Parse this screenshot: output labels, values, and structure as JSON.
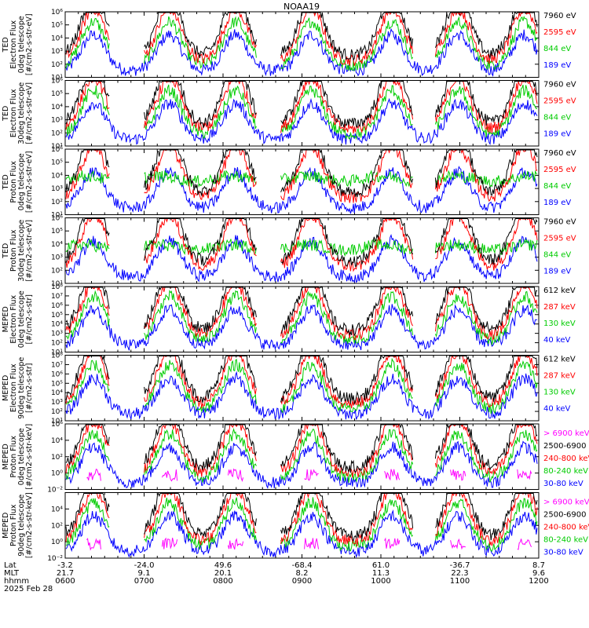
{
  "chart_data": {
    "type": "line",
    "title": "NOAA19",
    "x_start_hhmm": "0600",
    "x_end_hhmm": "1200",
    "panels": [
      {
        "ylabel": [
          "TED",
          "Electron Flux",
          "0deg telescope",
          "[#/cm2-s-str-eV]"
        ],
        "ylim": [
          10,
          1000000
        ],
        "log": true,
        "yticks": [
          "10⁶",
          "10⁵",
          "10⁴",
          "10³",
          "10²",
          "10¹"
        ],
        "ytick_exps": [
          6,
          5,
          4,
          3,
          2,
          1
        ],
        "series": [
          {
            "name": "7960 eV",
            "color": "#000000"
          },
          {
            "name": "2595 eV",
            "color": "#ff0000"
          },
          {
            "name": "844 eV",
            "color": "#00cc00"
          },
          {
            "name": "189 eV",
            "color": "#0000ff"
          }
        ]
      },
      {
        "ylabel": [
          "TED",
          "Electron Flux",
          "30deg telescope",
          "[#/cm2-s-str-eV]"
        ],
        "ylim": [
          10,
          1000000
        ],
        "log": true,
        "yticks": [
          "10⁶",
          "10⁵",
          "10⁴",
          "10³",
          "10²",
          "10¹"
        ],
        "ytick_exps": [
          6,
          5,
          4,
          3,
          2,
          1
        ],
        "series": [
          {
            "name": "7960 eV",
            "color": "#000000"
          },
          {
            "name": "2595 eV",
            "color": "#ff0000"
          },
          {
            "name": "844 eV",
            "color": "#00cc00"
          },
          {
            "name": "189 eV",
            "color": "#0000ff"
          }
        ]
      },
      {
        "ylabel": [
          "TED",
          "Proton Flux",
          "0deg telescope",
          "[#/cm2-s-str-eV]"
        ],
        "ylim": [
          10,
          1000000
        ],
        "log": true,
        "yticks": [
          "10⁶",
          "10⁵",
          "10⁴",
          "10³",
          "10²",
          "10¹"
        ],
        "ytick_exps": [
          6,
          5,
          4,
          3,
          2,
          1
        ],
        "series": [
          {
            "name": "7960 eV",
            "color": "#000000"
          },
          {
            "name": "2595 eV",
            "color": "#ff0000"
          },
          {
            "name": "844 eV",
            "color": "#00cc00"
          },
          {
            "name": "189 eV",
            "color": "#0000ff"
          }
        ]
      },
      {
        "ylabel": [
          "TED",
          "Proton Flux",
          "30deg telescope",
          "[#/cm2-s-str-eV]"
        ],
        "ylim": [
          10,
          1000000
        ],
        "log": true,
        "yticks": [
          "10⁶",
          "10⁵",
          "10⁴",
          "10³",
          "10²",
          "10¹"
        ],
        "ytick_exps": [
          6,
          5,
          4,
          3,
          2,
          1
        ],
        "series": [
          {
            "name": "7960 eV",
            "color": "#000000"
          },
          {
            "name": "2595 eV",
            "color": "#ff0000"
          },
          {
            "name": "844 eV",
            "color": "#00cc00"
          },
          {
            "name": "189 eV",
            "color": "#0000ff"
          }
        ]
      },
      {
        "ylabel": [
          "MEPED",
          "Electron Flux",
          "0deg telescope",
          "[#/cm2-s-str]"
        ],
        "ylim": [
          10,
          100000000
        ],
        "log": true,
        "yticks": [
          "10⁸",
          "10⁷",
          "10⁶",
          "10⁵",
          "10⁴",
          "10³",
          "10²",
          "10¹"
        ],
        "ytick_exps": [
          8,
          7,
          6,
          5,
          4,
          3,
          2,
          1
        ],
        "series": [
          {
            "name": "612 keV",
            "color": "#000000"
          },
          {
            "name": "287 keV",
            "color": "#ff0000"
          },
          {
            "name": "130 keV",
            "color": "#00cc00"
          },
          {
            "name": "40 keV",
            "color": "#0000ff"
          }
        ]
      },
      {
        "ylabel": [
          "MEPED",
          "Electron Flux",
          "90deg telescope",
          "[#/cm2-s-str]"
        ],
        "ylim": [
          10,
          100000000
        ],
        "log": true,
        "yticks": [
          "10⁸",
          "10⁷",
          "10⁶",
          "10⁵",
          "10⁴",
          "10³",
          "10²",
          "10¹"
        ],
        "ytick_exps": [
          8,
          7,
          6,
          5,
          4,
          3,
          2,
          1
        ],
        "series": [
          {
            "name": "612 keV",
            "color": "#000000"
          },
          {
            "name": "287 keV",
            "color": "#ff0000"
          },
          {
            "name": "130 keV",
            "color": "#00cc00"
          },
          {
            "name": "40 keV",
            "color": "#0000ff"
          }
        ]
      },
      {
        "ylabel": [
          "MEPED",
          "Proton Flux",
          "0deg telescope",
          "[#/cm2-s-str-keV]"
        ],
        "ylim": [
          0.01,
          1000000
        ],
        "log": true,
        "yticks": [
          "10⁶",
          "10⁴",
          "10²",
          "10⁰",
          "10⁻²"
        ],
        "ytick_exps": [
          6,
          4,
          2,
          0,
          -2
        ],
        "series": [
          {
            "name": "> 6900 keV",
            "color": "#ff00ff"
          },
          {
            "name": "2500-6900",
            "color": "#000000"
          },
          {
            "name": "240-800 keV",
            "color": "#ff0000"
          },
          {
            "name": "80-240 keV",
            "color": "#00cc00"
          },
          {
            "name": "30-80 keV",
            "color": "#0000ff"
          }
        ]
      },
      {
        "ylabel": [
          "MEPED",
          "Proton Flux",
          "90deg telescope",
          "[#/cm2-s-str-keV]"
        ],
        "ylim": [
          0.01,
          1000000
        ],
        "log": true,
        "yticks": [
          "10⁴",
          "10²",
          "10⁰",
          "10⁻²"
        ],
        "ytick_exps": [
          4,
          2,
          0,
          -2
        ],
        "series": [
          {
            "name": "> 6900 keV",
            "color": "#ff00ff"
          },
          {
            "name": "2500-6900",
            "color": "#000000"
          },
          {
            "name": "240-800 keV",
            "color": "#ff0000"
          },
          {
            "name": "80-240 keV",
            "color": "#00cc00"
          },
          {
            "name": "30-80 keV",
            "color": "#0000ff"
          }
        ]
      }
    ],
    "x_rows": [
      {
        "label": "Lat",
        "values": [
          "-3.2",
          "-24.0",
          "49.6",
          "-68.4",
          "61.0",
          "-36.7",
          "8.7"
        ]
      },
      {
        "label": "MLT",
        "values": [
          "21.7",
          "9.1",
          "20.1",
          "8.2",
          "11.3",
          "22.3",
          "9.6"
        ]
      },
      {
        "label": "hhmm",
        "values": [
          "0600",
          "0700",
          "0800",
          "0900",
          "1000",
          "1100",
          "1200"
        ]
      }
    ],
    "date": "2025 Feb 28",
    "grid": false,
    "legend_position": "right"
  }
}
